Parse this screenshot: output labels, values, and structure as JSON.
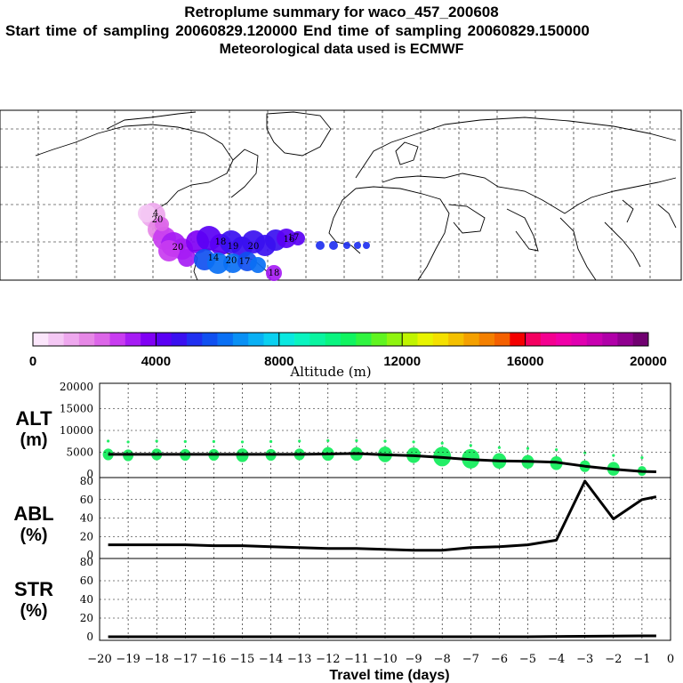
{
  "header": {
    "title": "Retroplume summary for waco_457_200608",
    "sampling": "Start time of sampling 20060829.120000     End time of sampling 20060829.150000",
    "met": "Meteorological data used is ECMWF"
  },
  "colorbar": {
    "label": "Altitude (m)",
    "ticks": [
      "0",
      "4000",
      "8000",
      "12000",
      "16000",
      "20000"
    ],
    "colors": [
      "#fbe6fb",
      "#f4c8f4",
      "#eea8ee",
      "#e688e6",
      "#dc66e8",
      "#c83cf0",
      "#a61cf4",
      "#8000f4",
      "#5a00f4",
      "#3a10f0",
      "#2030f0",
      "#1050f0",
      "#0a70f4",
      "#0a90f4",
      "#0ab0f4",
      "#0ad0f0",
      "#0ae8e0",
      "#0af4c0",
      "#0af4a0",
      "#0af480",
      "#10f460",
      "#30f440",
      "#60f420",
      "#90f410",
      "#c0f400",
      "#e8f400",
      "#f4e000",
      "#f4c000",
      "#f4a000",
      "#f48000",
      "#f46000",
      "#f40000",
      "#f40060",
      "#f40090",
      "#f000a8",
      "#e000b0",
      "#c800b0",
      "#b000a8",
      "#900090",
      "#700070"
    ]
  },
  "map_labels": [
    "20",
    "20",
    "20",
    "18",
    "17",
    "14",
    "16",
    "17",
    "18",
    "19",
    "20",
    "4"
  ],
  "chart_data": [
    {
      "type": "line",
      "panel": "ALT",
      "ylabel": "ALT (m)",
      "ylim": [
        0,
        20000
      ],
      "yticks": [
        "20000",
        "15000",
        "10000",
        "5000",
        "0"
      ],
      "x": [
        -19.7,
        -19,
        -18,
        -17,
        -16,
        -15,
        -14,
        -13,
        -12,
        -11,
        -10,
        -9,
        -8,
        -7,
        -6,
        -5,
        -4,
        -3,
        -2,
        -1,
        -0.5
      ],
      "values": [
        4500,
        4500,
        4500,
        4500,
        4500,
        4500,
        4500,
        4500,
        4600,
        4700,
        4400,
        4200,
        3800,
        3300,
        3000,
        2900,
        2700,
        1800,
        1100,
        600,
        500
      ],
      "scatter_points": [
        {
          "x": -19.7,
          "y": 4500,
          "s": 6
        },
        {
          "x": -19,
          "y": 4300,
          "s": 6
        },
        {
          "x": -18,
          "y": 4500,
          "s": 6
        },
        {
          "x": -17,
          "y": 4400,
          "s": 6
        },
        {
          "x": -16,
          "y": 4400,
          "s": 6
        },
        {
          "x": -15,
          "y": 4300,
          "s": 7
        },
        {
          "x": -14,
          "y": 4400,
          "s": 6
        },
        {
          "x": -13,
          "y": 4500,
          "s": 6
        },
        {
          "x": -12,
          "y": 4600,
          "s": 7
        },
        {
          "x": -11,
          "y": 4600,
          "s": 7
        },
        {
          "x": -10,
          "y": 4500,
          "s": 8
        },
        {
          "x": -9,
          "y": 4300,
          "s": 8
        },
        {
          "x": -8,
          "y": 4000,
          "s": 10
        },
        {
          "x": -7,
          "y": 3500,
          "s": 10
        },
        {
          "x": -6,
          "y": 3000,
          "s": 8
        },
        {
          "x": -5,
          "y": 2800,
          "s": 7
        },
        {
          "x": -4,
          "y": 2500,
          "s": 7
        },
        {
          "x": -3,
          "y": 1800,
          "s": 6
        },
        {
          "x": -2,
          "y": 1200,
          "s": 7
        },
        {
          "x": -1,
          "y": 700,
          "s": 5
        }
      ]
    },
    {
      "type": "line",
      "panel": "ABL",
      "ylabel": "ABL (%)",
      "ylim": [
        0,
        80
      ],
      "yticks": [
        "80",
        "60",
        "40",
        "20",
        "0"
      ],
      "x": [
        -19.7,
        -19,
        -18,
        -17,
        -16,
        -15,
        -14,
        -13,
        -12,
        -11,
        -10,
        -9,
        -8,
        -7,
        -6,
        -5,
        -4,
        -3,
        -2,
        -1,
        -0.5
      ],
      "values": [
        11,
        11,
        11,
        11,
        10,
        10,
        9,
        8,
        7,
        7,
        6,
        5,
        5,
        8,
        9,
        11,
        16,
        80,
        39,
        60,
        63
      ]
    },
    {
      "type": "line",
      "panel": "STR",
      "ylabel": "STR (%)",
      "ylim": [
        0,
        80
      ],
      "yticks": [
        "80",
        "60",
        "40",
        "20",
        "0"
      ],
      "x": [
        -19.7,
        -15,
        -10,
        -5,
        -1,
        -0.5
      ],
      "values": [
        0,
        0,
        0,
        0,
        1,
        1
      ]
    }
  ],
  "xaxis": {
    "label": "Travel time (days)",
    "ticks": [
      "-20",
      "-19",
      "-18",
      "-17",
      "-16",
      "-15",
      "-14",
      "-13",
      "-12",
      "-11",
      "-10",
      "-9",
      "-8",
      "-7",
      "-6",
      "-5",
      "-4",
      "-3",
      "-2",
      "-1",
      "0"
    ]
  },
  "panel_labels": {
    "alt_top": "ALT",
    "alt_bot": "(m)",
    "abl_top": "ABL",
    "abl_bot": "(%)",
    "str_top": "STR",
    "str_bot": "(%)"
  }
}
